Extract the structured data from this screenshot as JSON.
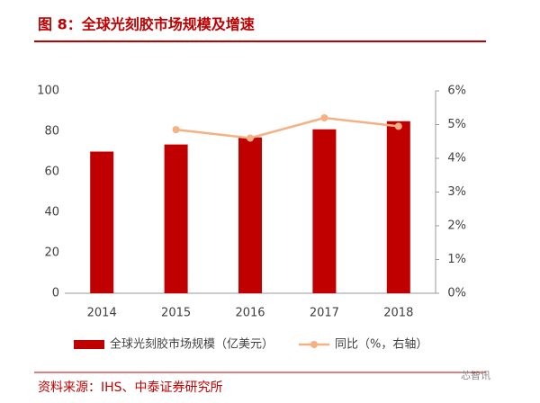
{
  "chart_data": {
    "type": "bar",
    "title": "图 8：全球光刻胶市场规模及增速",
    "categories": [
      "2014",
      "2015",
      "2016",
      "2017",
      "2018"
    ],
    "series": [
      {
        "name": "全球光刻胶市场规模（亿美元）",
        "color": "#c00000",
        "type": "bar",
        "values": [
          70,
          73.5,
          77,
          81,
          85
        ]
      },
      {
        "name": "同比（%，右轴）",
        "color": "#f4b183",
        "type": "line",
        "axis": "y2",
        "values": [
          null,
          4.85,
          4.6,
          5.2,
          4.95
        ]
      }
    ],
    "ylim": [
      0,
      100
    ],
    "yticks": [
      0,
      20,
      40,
      60,
      80,
      100
    ],
    "y2lim": [
      0,
      6
    ],
    "y2ticks": [
      {
        "value": 0,
        "label": "0%"
      },
      {
        "value": 1,
        "label": "1%"
      },
      {
        "value": 2,
        "label": "2%"
      },
      {
        "value": 3,
        "label": "3%"
      },
      {
        "value": 4,
        "label": "4%"
      },
      {
        "value": 5,
        "label": "5%"
      },
      {
        "value": 6,
        "label": "6%"
      }
    ],
    "grid": false,
    "source": "资料来源：IHS、中泰证券研究所",
    "watermark": "芯智讯"
  }
}
